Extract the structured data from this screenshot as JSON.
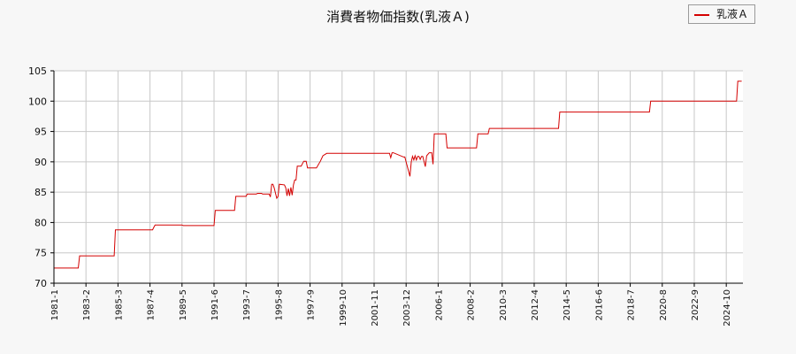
{
  "chart_data": {
    "type": "line",
    "title": "消費者物価指数(乳液Ａ)",
    "xlabel": "",
    "ylabel": "",
    "ylim": [
      70,
      105
    ],
    "yticks": [
      70,
      75,
      80,
      85,
      90,
      95,
      100,
      105
    ],
    "xticks": [
      "1981-1",
      "1983-2",
      "1985-3",
      "1987-4",
      "1989-5",
      "1991-6",
      "1993-7",
      "1995-8",
      "1997-9",
      "1999-10",
      "2001-11",
      "2003-12",
      "2006-1",
      "2008-2",
      "2010-3",
      "2012-4",
      "2014-5",
      "2016-6",
      "2018-7",
      "2020-8",
      "2022-9",
      "2024-10"
    ],
    "grid": true,
    "legend_position": "top-right",
    "series": [
      {
        "name": "乳液Ａ",
        "color": "#d40000",
        "x": [
          "1981-01",
          "1982-08",
          "1982-09",
          "1984-12",
          "1985-01",
          "1987-06",
          "1987-07",
          "1987-08",
          "1989-05",
          "1989-06",
          "1991-06",
          "1991-07",
          "1992-10",
          "1992-11",
          "1993-07",
          "1993-08",
          "1994-03",
          "1994-04",
          "1994-07",
          "1994-08",
          "1995-01",
          "1995-02",
          "1995-03",
          "1995-04",
          "1995-05",
          "1995-07",
          "1995-08",
          "1995-09",
          "1996-01",
          "1996-02",
          "1996-03",
          "1996-04",
          "1996-05",
          "1996-06",
          "1996-07",
          "1996-08",
          "1996-09",
          "1996-10",
          "1996-11",
          "1996-12",
          "1997-02",
          "1997-04",
          "1997-06",
          "1997-07",
          "1998-02",
          "1998-05",
          "1998-07",
          "1998-10",
          "1998-12",
          "1999-01",
          "1999-03",
          "1999-04",
          "1999-06",
          "2002-11",
          "2002-12",
          "2003-01",
          "2003-02",
          "2003-10",
          "2003-11",
          "2004-03",
          "2004-04",
          "2004-05",
          "2004-06",
          "2004-07",
          "2004-08",
          "2004-09",
          "2004-10",
          "2004-11",
          "2004-12",
          "2005-01",
          "2005-03",
          "2005-04",
          "2005-06",
          "2005-07",
          "2005-08",
          "2005-09",
          "2005-10",
          "2005-12",
          "2006-02",
          "2006-07",
          "2006-08",
          "2006-09",
          "2008-07",
          "2008-08",
          "2009-04",
          "2009-05",
          "2013-11",
          "2013-12",
          "2014-05",
          "2014-06",
          "2019-10",
          "2019-11",
          "2025-06",
          "2025-07",
          "2025-10"
        ],
        "values": [
          72.5,
          72.5,
          74.5,
          74.5,
          78.8,
          78.8,
          79.2,
          79.6,
          79.6,
          79.5,
          79.5,
          82.0,
          82.0,
          84.3,
          84.3,
          84.7,
          84.7,
          84.8,
          84.8,
          84.7,
          84.7,
          84.2,
          86.3,
          86.3,
          85.7,
          84.0,
          84.3,
          86.3,
          86.2,
          85.7,
          84.4,
          85.6,
          84.4,
          85.8,
          84.5,
          86.2,
          87.0,
          87.0,
          89.3,
          89.3,
          89.3,
          90.1,
          90.1,
          89.0,
          89.0,
          90.1,
          91.0,
          91.4,
          91.4,
          91.4,
          91.4,
          91.4,
          91.4,
          91.4,
          90.7,
          91.5,
          91.5,
          90.8,
          90.8,
          87.6,
          90.0,
          90.9,
          90.3,
          91.0,
          90.3,
          90.9,
          90.9,
          90.4,
          90.9,
          90.9,
          89.2,
          91.0,
          91.5,
          91.5,
          91.5,
          89.6,
          94.6,
          94.6,
          94.6,
          94.6,
          92.3,
          92.3,
          92.3,
          94.6,
          94.6,
          95.5,
          95.5,
          98.2,
          98.2,
          98.2,
          98.2,
          100.0,
          100.0,
          103.3,
          103.3
        ]
      }
    ]
  }
}
